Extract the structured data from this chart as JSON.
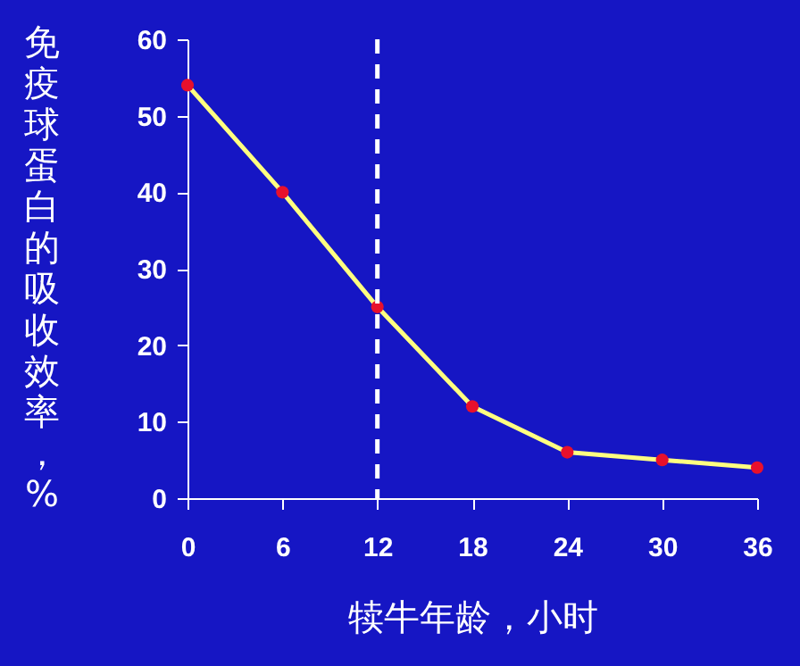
{
  "chart_data": {
    "type": "line",
    "xlabel": "犊牛年龄，小时",
    "ylabel": "免疫球蛋白的吸收效率，%",
    "x": [
      0,
      6,
      12,
      18,
      24,
      30,
      36
    ],
    "series": [
      {
        "color": "#ffff80",
        "values": [
          54,
          40,
          25,
          12,
          6,
          5,
          4
        ]
      }
    ],
    "marker": "circle",
    "line_style": "solid",
    "xlim": [
      0,
      36
    ],
    "xticks": [
      0,
      6,
      12,
      18,
      24,
      30,
      36
    ],
    "ylim": [
      0,
      60
    ],
    "yticks": [
      0,
      10,
      20,
      30,
      40,
      50,
      60
    ],
    "ref_lines": [
      {
        "axis": "x",
        "value": 12,
        "color": "#ffffff",
        "line_style": "dashed"
      }
    ],
    "grid": false
  }
}
